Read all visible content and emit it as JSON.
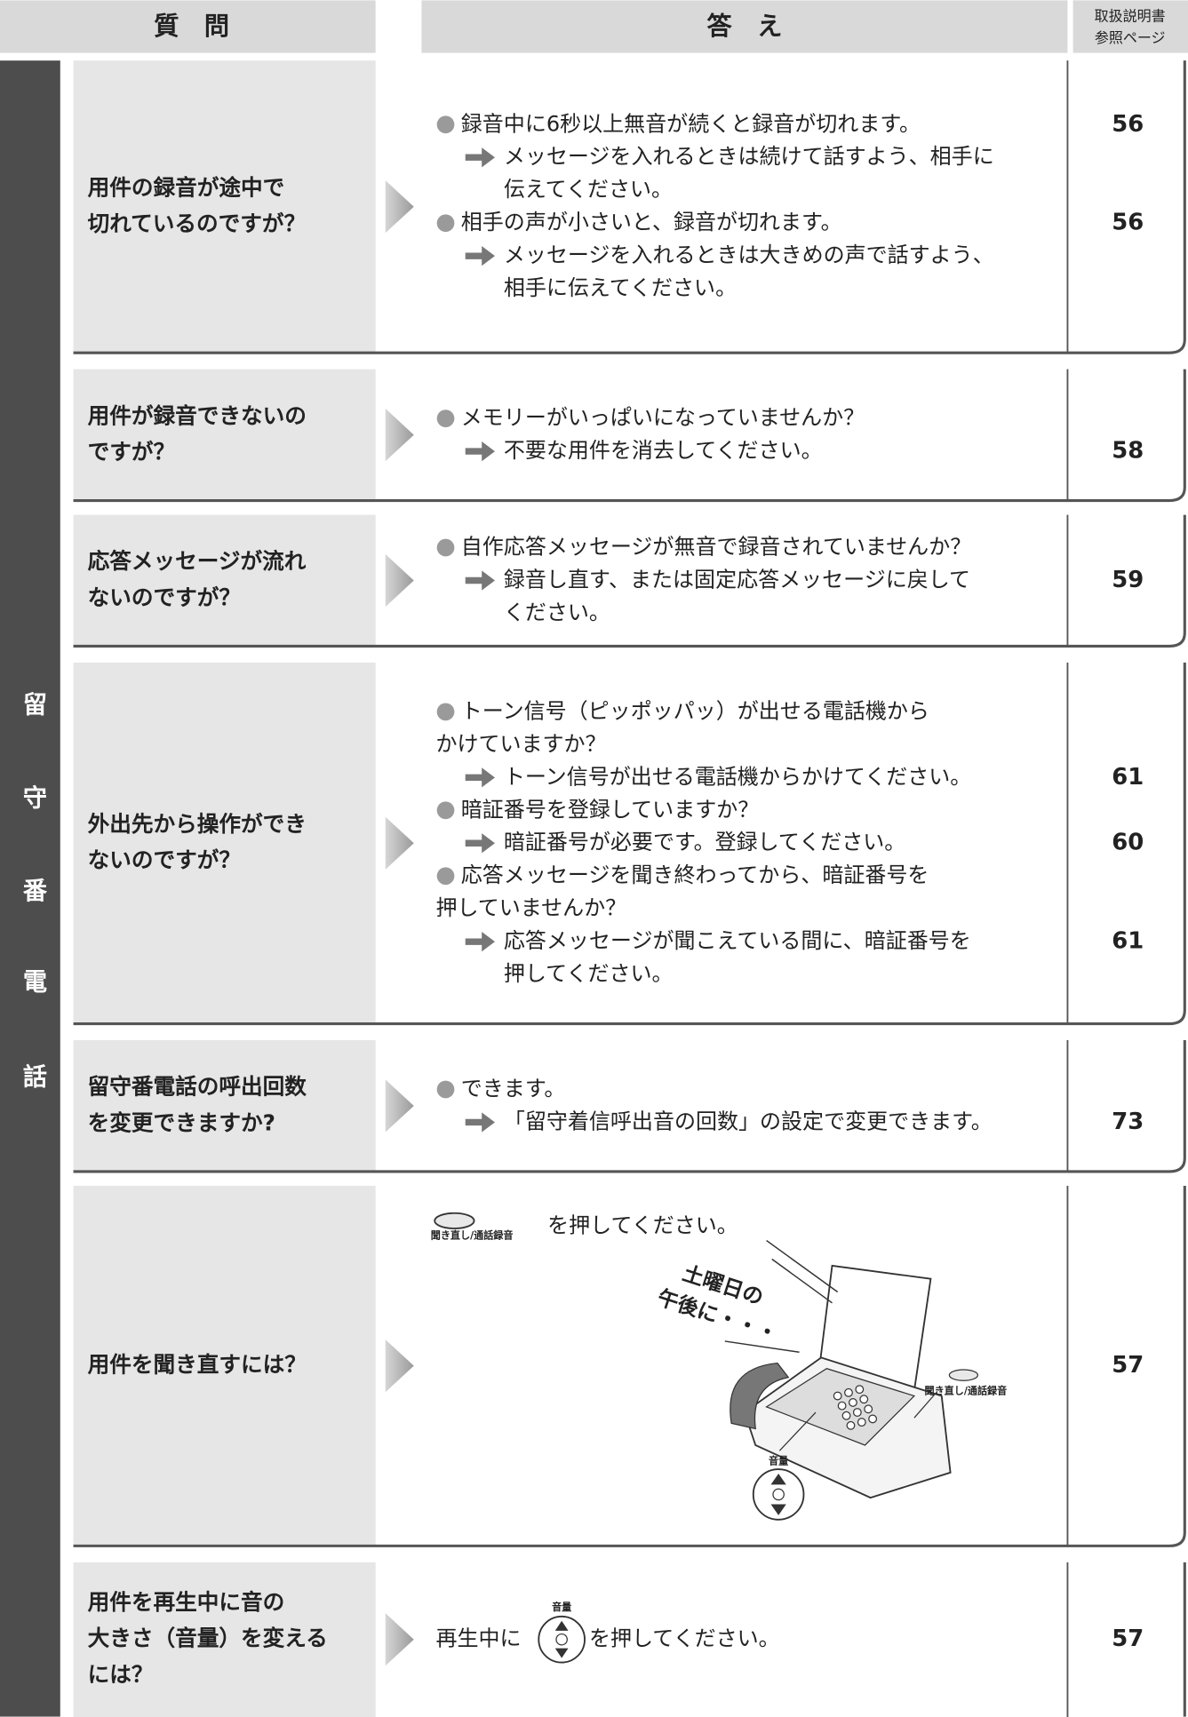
{
  "header": {
    "question": "質　問",
    "answer": "答　え",
    "page_ref": [
      "取扱説明書",
      "参照ページ"
    ]
  },
  "side_label": [
    "留",
    "守",
    "番",
    "電",
    "話"
  ],
  "rows": [
    {
      "question": [
        "用件の録音が途中で",
        "切れているのですが？"
      ],
      "answers": [
        {
          "text": [
            "録音中に6秒以上無音が続くと録音が切れます。"
          ],
          "page": 56,
          "notes": [
            {
              "text": [
                "メッセージを入れるときは続けて話すよう、相手に",
                "伝えてください。"
              ]
            }
          ]
        },
        {
          "text": [
            "相手の声が小さいと、録音が切れます。"
          ],
          "page": 56,
          "notes": [
            {
              "text": [
                "メッセージを入れるときは大きめの声で話すよう、",
                "相手に伝えてください。"
              ]
            }
          ]
        }
      ]
    },
    {
      "question": [
        "用件が録音できないの",
        "ですが？"
      ],
      "answers": [
        {
          "text": [
            "メモリーがいっぱいになっていませんか？"
          ],
          "notes": [
            {
              "text": [
                "不要な用件を消去してください。"
              ],
              "page": 58
            }
          ]
        }
      ]
    },
    {
      "question": [
        "応答メッセージが流れ",
        "ないのですが？"
      ],
      "answers": [
        {
          "text": [
            "自作応答メッセージが無音で録音されていませんか？"
          ],
          "notes": [
            {
              "text": [
                "録音し直す、または固定応答メッセージに戻して",
                "ください。"
              ],
              "page": 59
            }
          ]
        }
      ]
    },
    {
      "question": [
        "外出先から操作ができ",
        "ないのですが？"
      ],
      "answers": [
        {
          "text": [
            "トーン信号（ピッポッパッ）が出せる電話機から",
            "かけていますか？"
          ],
          "notes": [
            {
              "text": [
                "トーン信号が出せる電話機からかけてください。"
              ],
              "page": 61
            }
          ]
        },
        {
          "text": [
            "暗証番号を登録していますか？"
          ],
          "notes": [
            {
              "text": [
                "暗証番号が必要です。登録してください。"
              ],
              "page": 60
            }
          ]
        },
        {
          "text": [
            "応答メッセージを聞き終わってから、暗証番号を",
            "押していませんか？"
          ],
          "notes": [
            {
              "text": [
                "応答メッセージが聞こえている間に、暗証番号を",
                "押してください。"
              ],
              "page": 61
            }
          ]
        }
      ]
    },
    {
      "question": [
        "留守番電話の呼出回数",
        "を変更できますか?"
      ],
      "answers": [
        {
          "text": [
            "できます。"
          ],
          "notes": [
            {
              "text": [
                "「留守着信呼出音の回数」の設定で変更できます。"
              ],
              "page": 73
            }
          ]
        }
      ]
    },
    {
      "question": [
        "用件を聞き直すには？"
      ],
      "instruction": {
        "button_label": "聞き直し/通話録音",
        "text": "を押してください。"
      },
      "illustration": {
        "speech": [
          "土曜日の",
          "午後に・・・"
        ],
        "button_label": "聞き直し/通話録音",
        "volume_label": "音量"
      },
      "page": 57
    },
    {
      "question": [
        "用件を再生中に音の",
        "大きさ（音量）を変える",
        "には？"
      ],
      "instruction": {
        "prefix": "再生中に",
        "button_label": "音量",
        "text": "を押してください。"
      },
      "page": 57
    }
  ]
}
